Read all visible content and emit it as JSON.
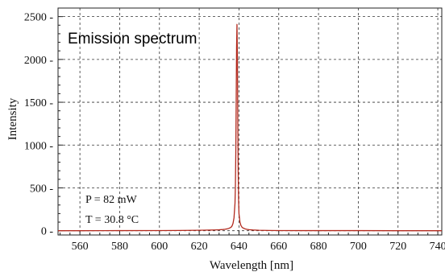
{
  "chart_data": {
    "type": "line",
    "title": "Emission spectrum",
    "xlabel": "Wavelength [nm]",
    "ylabel": "Intensity",
    "xlim": [
      549,
      742
    ],
    "ylim": [
      -50,
      2600
    ],
    "x_ticks": [
      560,
      580,
      600,
      620,
      640,
      660,
      680,
      700,
      720,
      740
    ],
    "y_ticks": [
      0,
      500,
      1000,
      1500,
      2000,
      2500
    ],
    "grid": true,
    "line_color": "#b22a1e",
    "annotations": [
      "P = 82 mW",
      "T = 30.8 °C"
    ],
    "series": [
      {
        "x": [
          549,
          560,
          580,
          600,
          610,
          620,
          625,
          628,
          630,
          632,
          633,
          634,
          635,
          636,
          636.5,
          637,
          637.5,
          638,
          638.2,
          638.4,
          638.6,
          638.8,
          639,
          639.2,
          639.4,
          639.6,
          639.8,
          640,
          640.5,
          641,
          641.5,
          642,
          643,
          644,
          645,
          647,
          650,
          655,
          660,
          680,
          700,
          720,
          742
        ],
        "y": [
          0,
          0,
          1,
          2,
          3,
          5,
          7,
          9,
          11,
          14,
          17,
          21,
          28,
          40,
          55,
          85,
          150,
          320,
          520,
          900,
          1500,
          2150,
          2410,
          2050,
          1300,
          700,
          360,
          200,
          100,
          60,
          42,
          32,
          22,
          16,
          12,
          8,
          5,
          3,
          2,
          1,
          1,
          0,
          0
        ]
      }
    ]
  }
}
